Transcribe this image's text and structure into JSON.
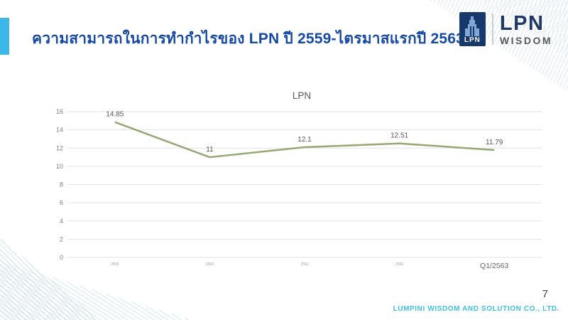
{
  "header": {
    "title": "ความสามารถในการทำกำไรของ LPN ปี 2559-ไตรมาสแรกปี 2563"
  },
  "logo": {
    "emblem_text": "LPN",
    "name": "LPN",
    "subtitle": "WISDOM"
  },
  "chart_data": {
    "type": "line",
    "title": "LPN",
    "categories": [
      "2559",
      "2560",
      "2561",
      "2562",
      "Q1/2563"
    ],
    "values": [
      14.85,
      11,
      12.1,
      12.51,
      11.79
    ],
    "data_labels": [
      "14.85",
      "11",
      "12.1",
      "12.51",
      "11.79"
    ],
    "xlabel": "",
    "ylabel": "",
    "ylim": [
      0,
      16
    ],
    "ytick_step": 2,
    "grid": true,
    "legend_position": "none",
    "line_color": "#94a873",
    "gridline_color": "#e2e2e2",
    "tick_label_color": "#808080",
    "data_label_color": "#555555"
  },
  "footer": {
    "page_number": "7",
    "company": "LUMPINI WISDOM AND SOLUTION CO., LTD."
  },
  "colors": {
    "accent_cyan": "#3bb7e8",
    "title_blue": "#1549a5",
    "footer_cyan": "#3ec1e0",
    "logo_navy": "#16386b"
  }
}
